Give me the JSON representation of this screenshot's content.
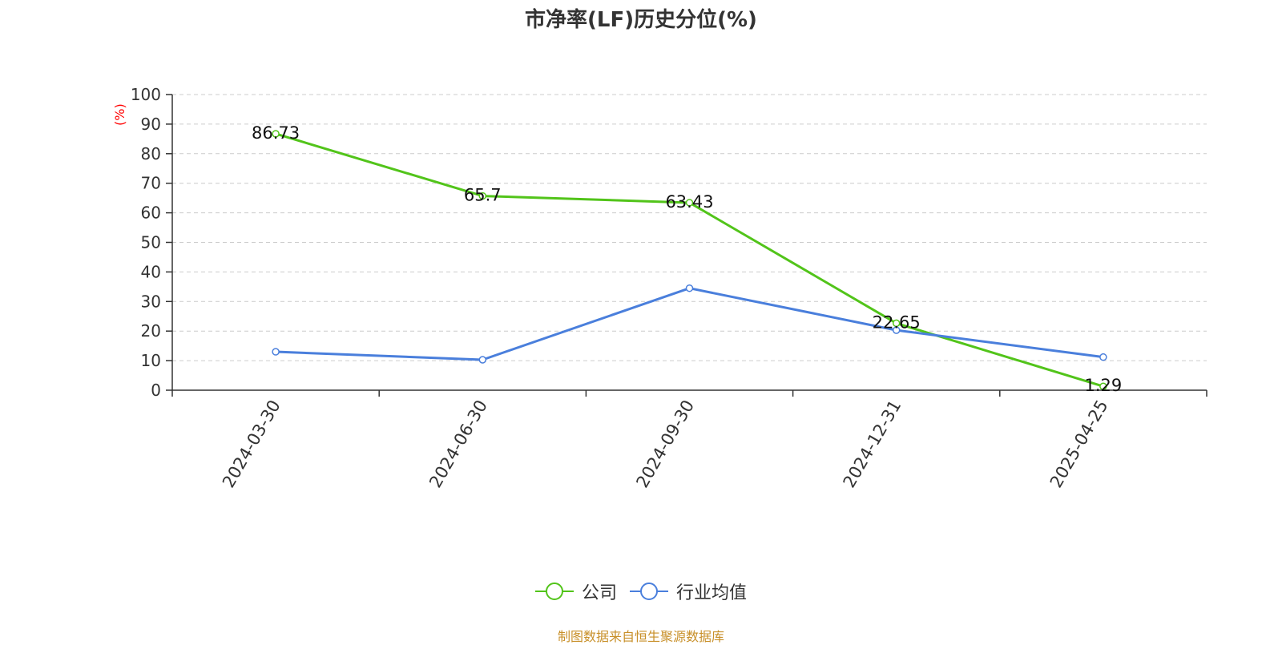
{
  "title": "市净率(LF)历史分位(%)",
  "y_unit": "(%)",
  "source": "制图数据来自恒生聚源数据库",
  "chart_data": {
    "type": "line",
    "categories": [
      "2024-03-30",
      "2024-06-30",
      "2024-09-30",
      "2024-12-31",
      "2025-04-25"
    ],
    "ylim": [
      0,
      100
    ],
    "yticks": [
      0,
      10,
      20,
      30,
      40,
      50,
      60,
      70,
      80,
      90,
      100
    ],
    "grid": true,
    "legend_position": "bottom",
    "series": [
      {
        "name": "公司",
        "color": "#52c41a",
        "values": [
          86.73,
          65.7,
          63.43,
          22.65,
          1.29
        ],
        "show_labels": true
      },
      {
        "name": "行业均值",
        "color": "#4a7fdc",
        "values": [
          13.0,
          10.3,
          34.5,
          20.3,
          11.2
        ],
        "show_labels": false
      }
    ]
  }
}
